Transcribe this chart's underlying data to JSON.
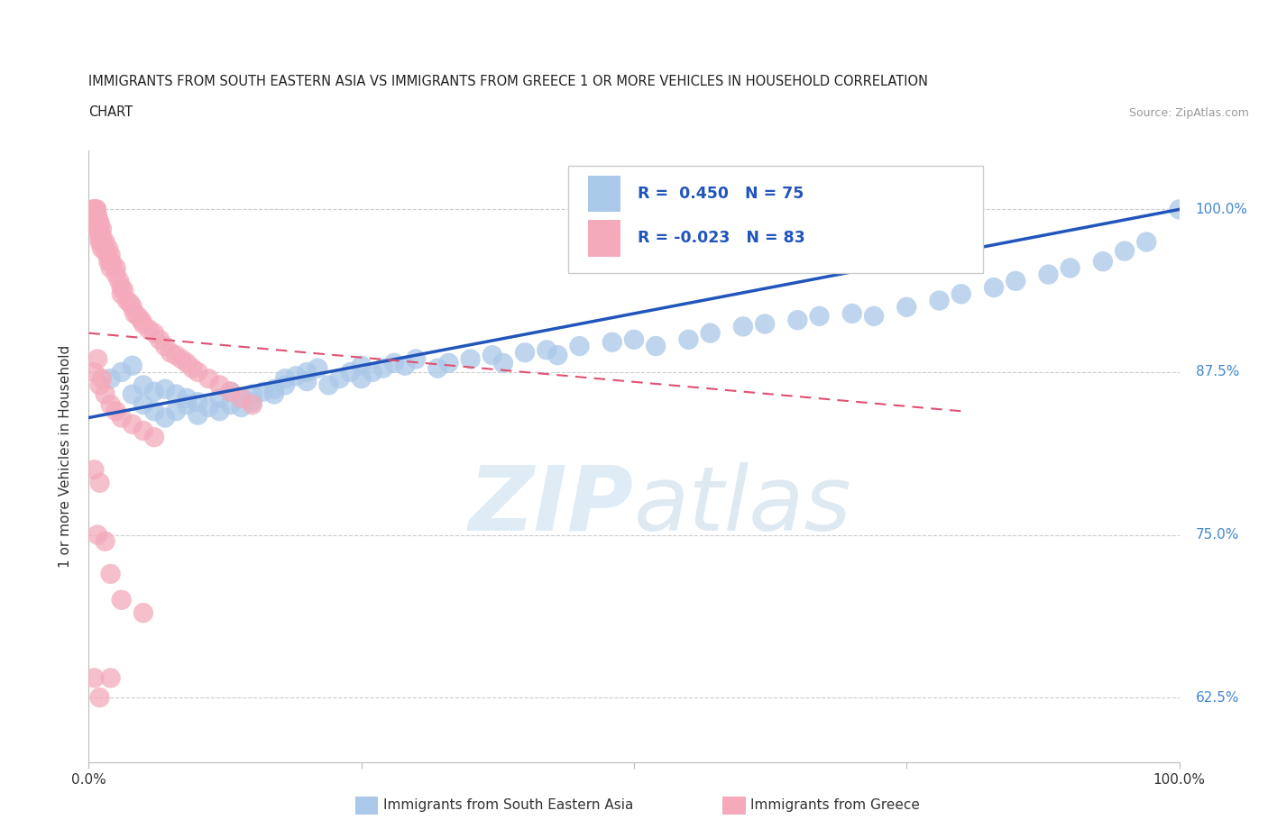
{
  "title_line1": "IMMIGRANTS FROM SOUTH EASTERN ASIA VS IMMIGRANTS FROM GREECE 1 OR MORE VEHICLES IN HOUSEHOLD CORRELATION",
  "title_line2": "CHART",
  "source_text": "Source: ZipAtlas.com",
  "watermark_zip": "ZIP",
  "watermark_atlas": "atlas",
  "xlabel": "",
  "ylabel": "1 or more Vehicles in Household",
  "legend_label_blue": "Immigrants from South Eastern Asia",
  "legend_label_pink": "Immigrants from Greece",
  "R_blue": 0.45,
  "N_blue": 75,
  "R_pink": -0.023,
  "N_pink": 83,
  "xlim": [
    0.0,
    1.0
  ],
  "ylim": [
    0.575,
    1.045
  ],
  "yticks": [
    0.625,
    0.75,
    0.875,
    1.0
  ],
  "ytick_labels": [
    "62.5%",
    "75.0%",
    "87.5%",
    "100.0%"
  ],
  "xticks": [
    0.0,
    0.25,
    0.5,
    0.75,
    1.0
  ],
  "xtick_labels": [
    "0.0%",
    "",
    "",
    "",
    "100.0%"
  ],
  "blue_color": "#aac8e8",
  "blue_edge_color": "#aac8e8",
  "blue_line_color": "#2255bb",
  "pink_color": "#f4aabb",
  "pink_edge_color": "#f4aabb",
  "pink_line_color": "#e05070",
  "blue_scatter_x": [
    0.02,
    0.03,
    0.04,
    0.04,
    0.05,
    0.05,
    0.06,
    0.06,
    0.07,
    0.07,
    0.08,
    0.08,
    0.09,
    0.09,
    0.1,
    0.1,
    0.11,
    0.12,
    0.12,
    0.13,
    0.13,
    0.14,
    0.14,
    0.15,
    0.15,
    0.16,
    0.17,
    0.17,
    0.18,
    0.18,
    0.19,
    0.2,
    0.2,
    0.21,
    0.22,
    0.23,
    0.24,
    0.25,
    0.25,
    0.26,
    0.27,
    0.28,
    0.29,
    0.3,
    0.32,
    0.33,
    0.35,
    0.37,
    0.38,
    0.4,
    0.42,
    0.43,
    0.45,
    0.48,
    0.5,
    0.52,
    0.55,
    0.57,
    0.6,
    0.62,
    0.65,
    0.67,
    0.7,
    0.72,
    0.75,
    0.78,
    0.8,
    0.83,
    0.85,
    0.88,
    0.9,
    0.93,
    0.95,
    0.97,
    1.0
  ],
  "blue_scatter_y": [
    0.87,
    0.875,
    0.88,
    0.858,
    0.865,
    0.85,
    0.86,
    0.845,
    0.862,
    0.84,
    0.858,
    0.845,
    0.85,
    0.855,
    0.852,
    0.842,
    0.848,
    0.855,
    0.845,
    0.86,
    0.85,
    0.855,
    0.848,
    0.858,
    0.852,
    0.86,
    0.862,
    0.858,
    0.865,
    0.87,
    0.872,
    0.868,
    0.875,
    0.878,
    0.865,
    0.87,
    0.875,
    0.88,
    0.87,
    0.875,
    0.878,
    0.882,
    0.88,
    0.885,
    0.878,
    0.882,
    0.885,
    0.888,
    0.882,
    0.89,
    0.892,
    0.888,
    0.895,
    0.898,
    0.9,
    0.895,
    0.9,
    0.905,
    0.91,
    0.912,
    0.915,
    0.918,
    0.92,
    0.918,
    0.925,
    0.93,
    0.935,
    0.94,
    0.945,
    0.95,
    0.955,
    0.96,
    0.968,
    0.975,
    1.0
  ],
  "pink_scatter_x": [
    0.005,
    0.005,
    0.005,
    0.005,
    0.005,
    0.007,
    0.007,
    0.007,
    0.007,
    0.007,
    0.007,
    0.008,
    0.008,
    0.008,
    0.01,
    0.01,
    0.01,
    0.01,
    0.01,
    0.01,
    0.012,
    0.012,
    0.012,
    0.012,
    0.015,
    0.015,
    0.015,
    0.018,
    0.018,
    0.018,
    0.02,
    0.02,
    0.02,
    0.022,
    0.025,
    0.025,
    0.028,
    0.03,
    0.03,
    0.032,
    0.035,
    0.038,
    0.04,
    0.042,
    0.045,
    0.048,
    0.05,
    0.055,
    0.06,
    0.065,
    0.07,
    0.075,
    0.08,
    0.085,
    0.09,
    0.095,
    0.1,
    0.11,
    0.12,
    0.13,
    0.14,
    0.15,
    0.005,
    0.008,
    0.01,
    0.012,
    0.015,
    0.02,
    0.025,
    0.03,
    0.04,
    0.05,
    0.06,
    0.005,
    0.01,
    0.008,
    0.015,
    0.02,
    0.03,
    0.05,
    0.005,
    0.01,
    0.02
  ],
  "pink_scatter_y": [
    1.0,
    1.0,
    1.0,
    1.0,
    0.995,
    1.0,
    1.0,
    0.998,
    0.995,
    0.99,
    0.985,
    0.995,
    0.992,
    0.988,
    0.99,
    0.988,
    0.985,
    0.982,
    0.978,
    0.975,
    0.985,
    0.98,
    0.975,
    0.97,
    0.975,
    0.972,
    0.968,
    0.97,
    0.965,
    0.96,
    0.965,
    0.96,
    0.955,
    0.958,
    0.955,
    0.95,
    0.945,
    0.94,
    0.935,
    0.938,
    0.93,
    0.928,
    0.925,
    0.92,
    0.918,
    0.915,
    0.912,
    0.908,
    0.905,
    0.9,
    0.895,
    0.89,
    0.888,
    0.885,
    0.882,
    0.878,
    0.875,
    0.87,
    0.865,
    0.86,
    0.855,
    0.85,
    0.875,
    0.885,
    0.865,
    0.87,
    0.858,
    0.85,
    0.845,
    0.84,
    0.835,
    0.83,
    0.825,
    0.8,
    0.79,
    0.75,
    0.745,
    0.72,
    0.7,
    0.69,
    0.64,
    0.625,
    0.64
  ],
  "blue_trend_x": [
    0.0,
    1.0
  ],
  "blue_trend_y": [
    0.84,
    1.0
  ],
  "pink_trend_x": [
    0.0,
    0.8
  ],
  "pink_trend_y": [
    0.905,
    0.845
  ],
  "background_color": "#ffffff",
  "grid_color": "#cccccc",
  "title_color": "#222222",
  "ytick_right_color": "#4488cc",
  "legend_text_color": "#1a1a1a",
  "legend_R_color": "#2255bb"
}
